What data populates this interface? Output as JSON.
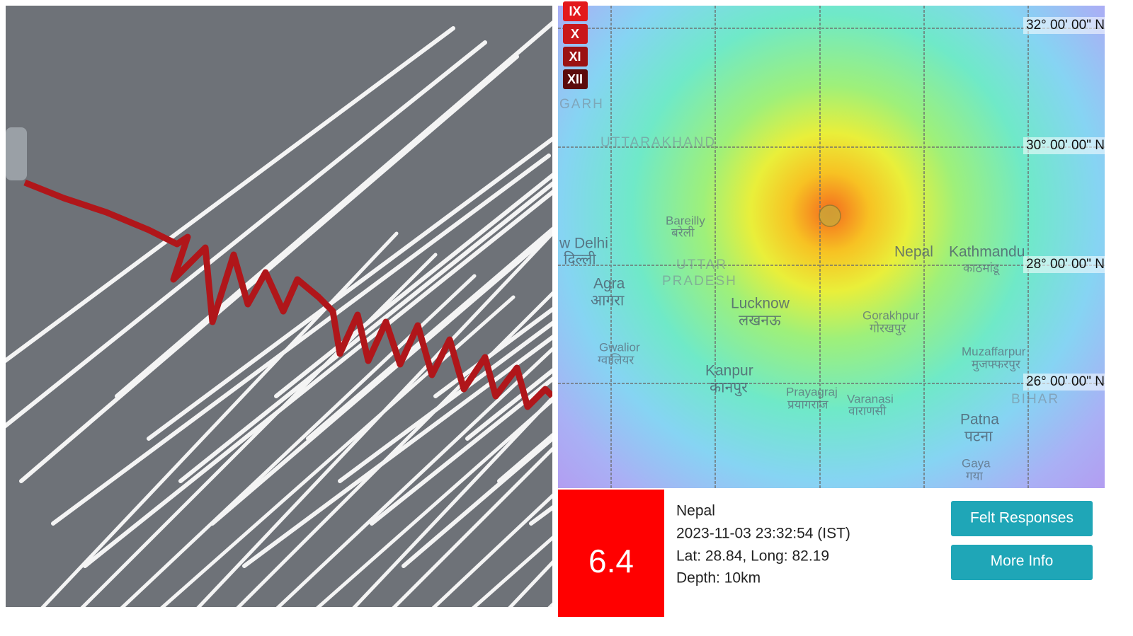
{
  "intensity_scale": [
    "IX",
    "X",
    "XI",
    "XII"
  ],
  "map": {
    "latitude_labels": [
      "32° 00' 00\" N",
      "30° 00' 00\" N",
      "28° 00' 00\" N",
      "26° 00' 00\" N"
    ],
    "places": [
      "GARH",
      "UTTARAKHAND",
      "Bareilly",
      "बरेली",
      "w Delhi",
      "दिल्ली",
      "Agra",
      "आगरा",
      "UTTAR",
      "PRADESH",
      "Lucknow",
      "लखनऊ",
      "Nepal",
      "Kathmandu",
      "काठमांडू",
      "Gorakhpur",
      "गोरखपुर",
      "Gwalior",
      "ग्वालियर",
      "Kanpur",
      "कानपुर",
      "Prayagraj",
      "प्रयागराज",
      "Varanasi",
      "वाराणसी",
      "Muzaffarpur",
      "मुजफ्फरपुर",
      "BIHAR",
      "Patna",
      "पटना",
      "Gaya",
      "गया"
    ]
  },
  "event": {
    "magnitude": "6.4",
    "location": "Nepal",
    "time": "2023-11-03 23:32:54 (IST)",
    "coordinates": "Lat: 28.84, Long: 82.19",
    "depth": "Depth: 10km"
  },
  "buttons": [
    "Felt Responses",
    "More Info"
  ]
}
